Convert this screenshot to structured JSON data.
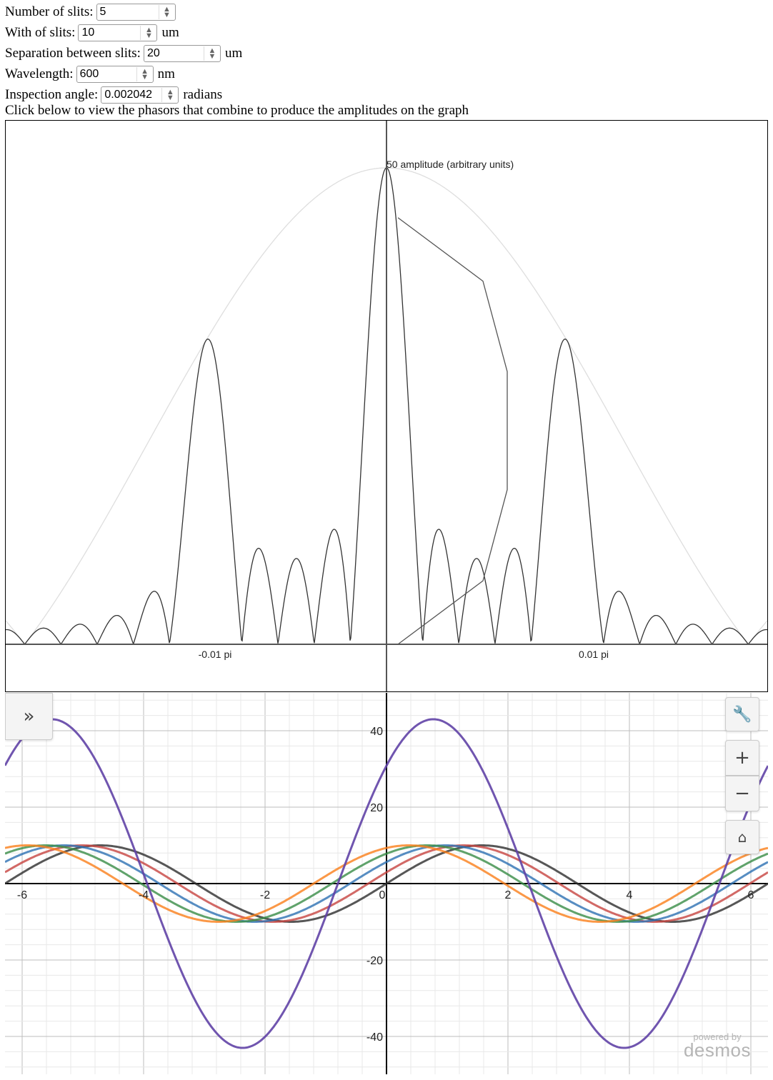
{
  "controls": {
    "slits": {
      "label": "Number of slits:",
      "value": "5",
      "unit": ""
    },
    "width": {
      "label": "With of slits:",
      "value": "10",
      "unit": "um"
    },
    "separation": {
      "label": "Separation between slits:",
      "value": "20",
      "unit": "um"
    },
    "wavelength": {
      "label": "Wavelength:",
      "value": "600",
      "unit": "nm"
    },
    "angle": {
      "label": "Inspection angle:",
      "value": "0.002042",
      "unit": "radians"
    }
  },
  "hint": "Click below to view the phasors that combine to produce the amplitudes on the graph",
  "pattern_graph": {
    "y_label": "50 amplitude (arbitrary units)",
    "x_tick_left": "-0.01 pi",
    "x_tick_right": "0.01 pi",
    "phasor_points": [
      [
        0,
        0
      ],
      [
        7,
        9.4
      ],
      [
        9,
        22.9
      ],
      [
        9,
        40.4
      ],
      [
        7,
        53.8
      ],
      [
        0,
        63.2
      ]
    ]
  },
  "chart_data": {
    "type": "line",
    "xlim": [
      -6.3,
      6.3
    ],
    "ylim": [
      -50,
      50
    ],
    "x_ticks": [
      -6,
      -4,
      -2,
      0,
      2,
      4,
      6
    ],
    "y_ticks": [
      40,
      20,
      0,
      -20,
      -40
    ],
    "grid": true,
    "series": [
      {
        "color": "#2d2d2d",
        "amplitude": 10,
        "phase": 0.0
      },
      {
        "color": "#c74440",
        "amplitude": 10,
        "phase": 0.3
      },
      {
        "color": "#2d70b3",
        "amplitude": 10,
        "phase": 0.6
      },
      {
        "color": "#388c46",
        "amplitude": 10,
        "phase": 0.9
      },
      {
        "color": "#fa7e19",
        "amplitude": 10,
        "phase": 1.2
      },
      {
        "color": "#6042a6",
        "amplitude": 43,
        "phase": 0.8
      }
    ]
  },
  "desmos": {
    "expand_icon": "double-chevron-right-icon",
    "wrench_icon": "wrench-icon",
    "zoom_in": "+",
    "zoom_out": "−",
    "home_icon": "home-icon",
    "powered_by": "powered by",
    "brand": "desmos"
  }
}
